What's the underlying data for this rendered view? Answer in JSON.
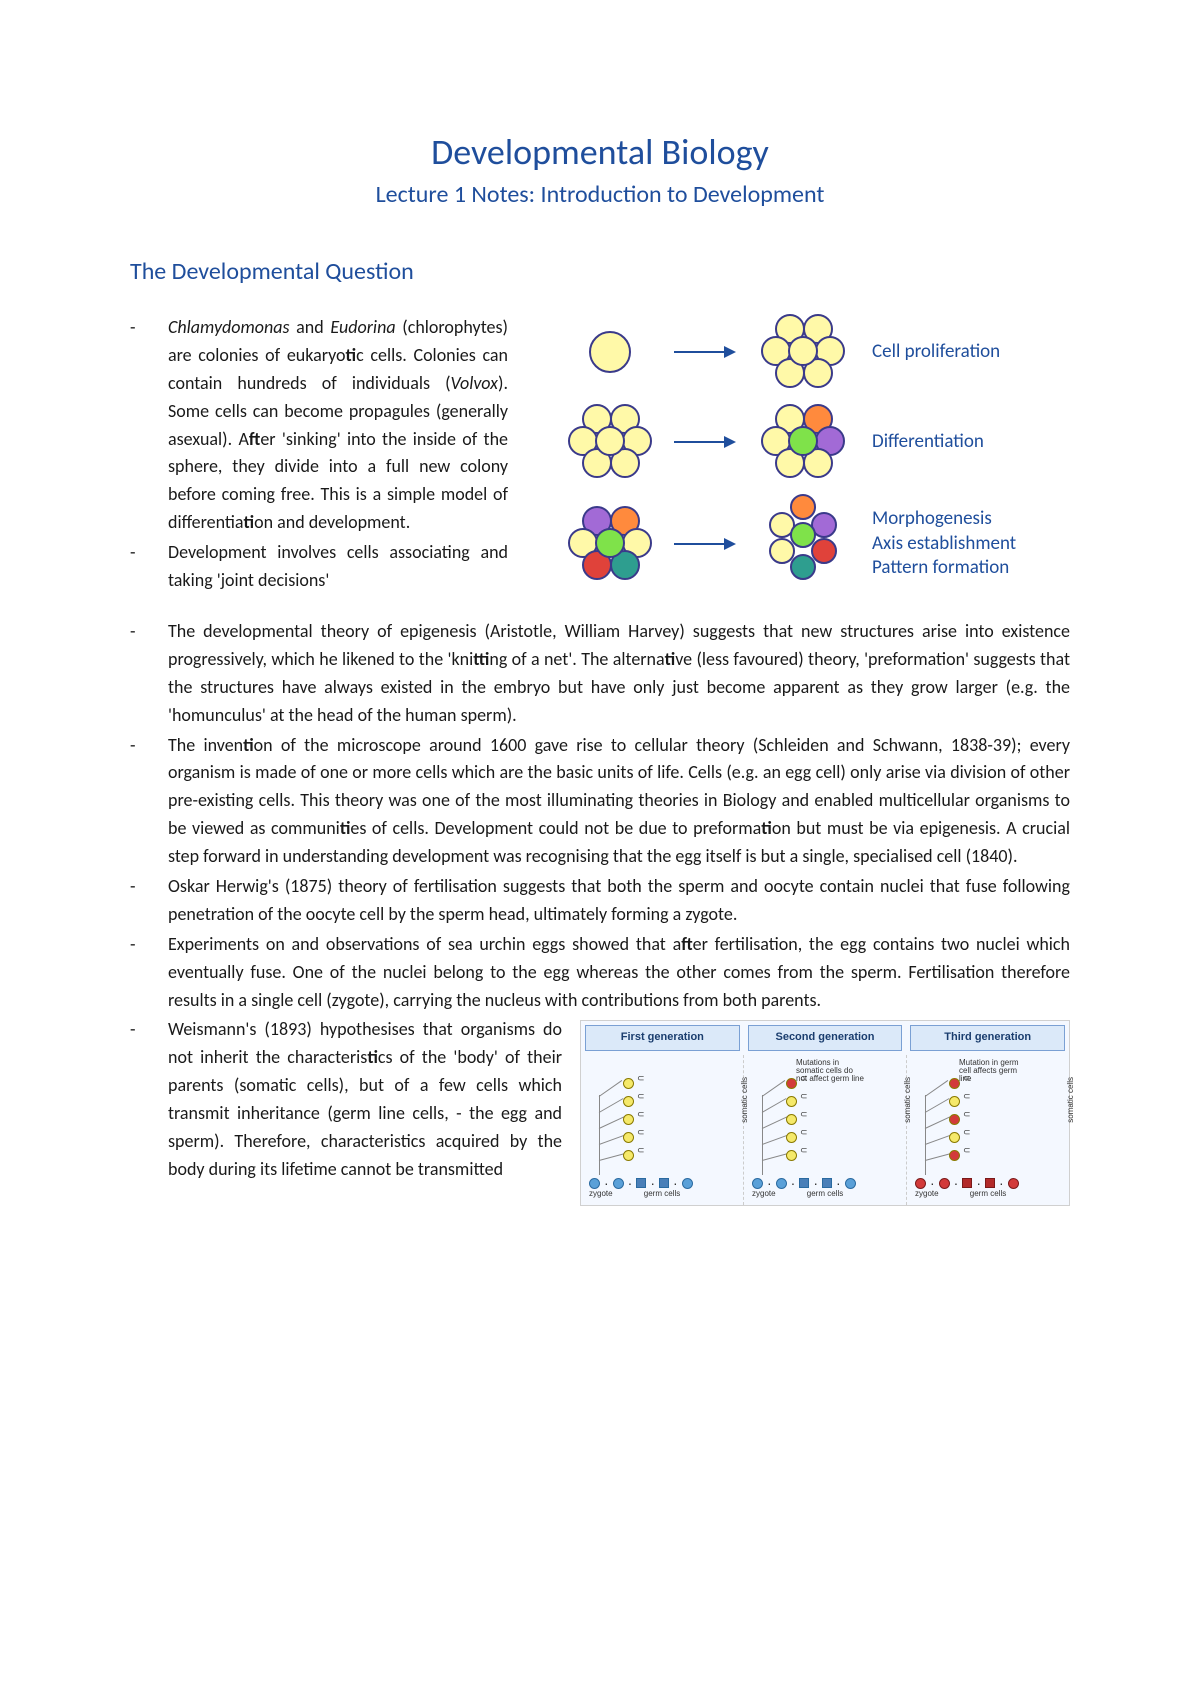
{
  "title": "Developmental Biology",
  "subtitle": "Lecture 1 Notes: Introduction to Development",
  "section_heading": "The Developmental Question",
  "accent_color": "#1f4e9c",
  "figure_top": {
    "rows": [
      {
        "caption": "Cell proliferation"
      },
      {
        "caption": "Differentiation"
      },
      {
        "caption": "Morphogenesis\nAxis establishment\nPattern formation"
      }
    ],
    "colors": {
      "yellow": "#fff9a8",
      "yellow_border": "#3a3a8a",
      "orange": "#ff8a3d",
      "green": "#7fe24a",
      "purple": "#a26ad6",
      "teal": "#2e9e8f",
      "red": "#e0423a"
    }
  },
  "bullets": {
    "b1_html": "<span class=\"italic\">Chlamydomonas</span> and <span class=\"italic\">Eudorina</span> (chlorophytes) are colonies of eukaryo<span class=\"bold\">ti</span>c cells. Colonies can contain hundreds of individuals (<span class=\"italic\">Volvox</span>). Some cells can become propagules (generally asexual). A<span class=\"bold\">ft</span>er 'sinking' into the inside of the sphere, they divide into a full new colony before coming free. This is a simple model of differentia<span class=\"bold\">ti</span>on and development.",
    "b2": "Development involves cells associating and taking 'joint decisions'",
    "b3_html": "The developmental theory of epigenesis (Aristotle, William Harvey) suggests that new structures arise into existence progressively, which he likened to the 'kni<span class=\"bold\">tti</span>ng of a net'. The alterna<span class=\"bold\">ti</span>ve (less favoured) theory, 'preformation' suggests that the structures have always existed in the embryo but have only just become apparent as they grow larger (e.g. the 'homunculus' at the head of the human sperm).",
    "b4_html": "The inven<span class=\"bold\">ti</span>on of the microscope around 1600 gave rise to cellular theory (Schleiden and Schwann, 1838-39); every organism is made of one or more cells which are the basic units of life. Cells (e.g. an egg cell) only arise via division of other pre-existing cells. This theory was one of the most illuminating theories in Biology and enabled multicellular organisms to be viewed as communi<span class=\"bold\">ti</span>es of cells. Development could not be due to preforma<span class=\"bold\">ti</span>on but must be via epigenesis. A crucial step forward in understanding development was recognising that the egg itself is but a single, specialised cell (1840).",
    "b5_html": "Oskar Herwig's (1875) theory of fertilisation suggests that both the sperm and oocyte contain nuclei that fuse following penetration of the oocyte cell by the sperm head, ultimately forming a zygote.",
    "b6_html": "Experiments on and observations of sea urchin eggs showed that a<span class=\"bold\">ft</span>er fertilisation, the egg contains two nuclei which eventually fuse. One of the nuclei belong to the egg whereas the other comes from the sperm. Fertilisation therefore results in a single cell (zygote), carrying the nucleus with contributions from both parents.",
    "b7_html": "Weismann's (1893) hypothesises that organisms do not inherit the characteris<span class=\"bold\">ti</span>cs of the 'body' of their parents (somatic cells), but of a few cells which transmit inheritance (germ line cells, - the egg and sperm). Therefore, characteristics acquired by the body during its lifetime cannot be transmitted"
  },
  "figure_bottom": {
    "headers": [
      "First generation",
      "Second generation",
      "Third generation"
    ],
    "notes": {
      "gen2": "Mutations in somatic cells do not affect germ line",
      "gen3": "Mutation in germ cell affects germ line"
    },
    "labels": {
      "somatic": "somatic cells",
      "zygote": "zygote",
      "germ_cells": "germ cells"
    },
    "colors": {
      "panel_bg": "#f4f8ff",
      "header_bg": "#dbe9f9",
      "header_border": "#7aa0d4",
      "germ_blue": "#5aa0d8",
      "germ_blue_border": "#2a6aa0",
      "germ_square": "#4a7fb8",
      "soma_yellow": "#f5e96a",
      "soma_border": "#8a7a00",
      "mutant_red": "#d23a3a"
    }
  }
}
